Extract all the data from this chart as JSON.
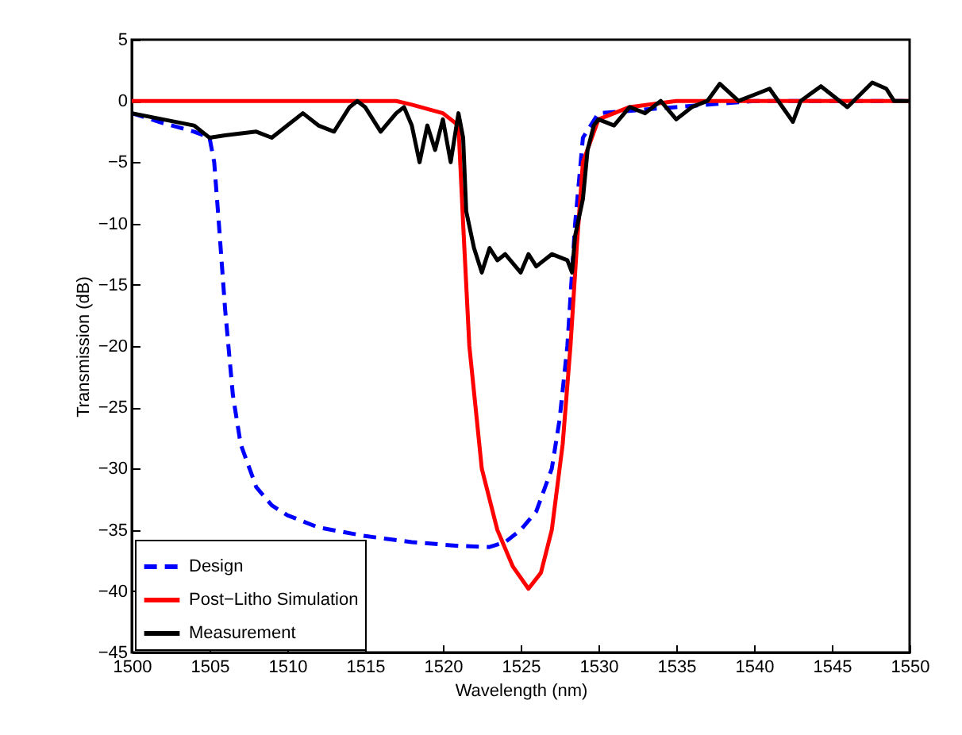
{
  "chart_data": {
    "type": "line",
    "xlabel": "Wavelength (nm)",
    "ylabel": "Transmission (dB)",
    "xlim": [
      1500,
      1550
    ],
    "xticks": [
      1500,
      1505,
      1510,
      1515,
      1520,
      1525,
      1530,
      1535,
      1540,
      1545,
      1550
    ],
    "ylim": [
      -45,
      5
    ],
    "yticks": [
      -45,
      -40,
      -35,
      -30,
      -25,
      -20,
      -15,
      -10,
      -5,
      0,
      5
    ],
    "grid": false,
    "legend": "bottom left",
    "series": [
      {
        "name": "Design",
        "color": "#0000ff",
        "line_style": "dashed",
        "x": [
          1500,
          1502,
          1504,
          1505,
          1505.3,
          1505.6,
          1506,
          1506.5,
          1507,
          1508,
          1509,
          1510,
          1512,
          1515,
          1518,
          1521,
          1523,
          1524,
          1525,
          1526,
          1527,
          1527.5,
          1528,
          1528.5,
          1529,
          1530,
          1535,
          1540,
          1545,
          1550
        ],
        "values": [
          -1,
          -1.8,
          -2.5,
          -3,
          -5,
          -10,
          -17,
          -24,
          -28,
          -31.5,
          -33,
          -33.8,
          -34.8,
          -35.5,
          -36,
          -36.3,
          -36.4,
          -36,
          -35,
          -33.5,
          -30,
          -26,
          -20,
          -10,
          -3,
          -1,
          -0.5,
          0,
          0,
          0
        ]
      },
      {
        "name": "Post−Litho Simulation",
        "color": "#ff0000",
        "line_style": "solid",
        "x": [
          1500,
          1517,
          1518,
          1520,
          1521,
          1521.3,
          1521.7,
          1522.5,
          1523.5,
          1524.5,
          1525.5,
          1526.3,
          1527,
          1527.7,
          1528.2,
          1528.6,
          1529,
          1530,
          1532,
          1535,
          1550
        ],
        "values": [
          0,
          0,
          -0.3,
          -1,
          -2,
          -10,
          -20,
          -30,
          -35,
          -38,
          -39.8,
          -38.5,
          -35,
          -28,
          -20,
          -12,
          -5,
          -1.5,
          -0.5,
          0,
          0
        ]
      },
      {
        "name": "Measurement",
        "color": "#000000",
        "line_style": "solid",
        "x": [
          1500,
          1502,
          1504,
          1505,
          1506,
          1508,
          1509,
          1510,
          1511,
          1512,
          1513,
          1514,
          1514.5,
          1515,
          1516,
          1517,
          1517.5,
          1518,
          1518.5,
          1519,
          1519.5,
          1520,
          1520.5,
          1521,
          1521.3,
          1521.5,
          1522,
          1522.5,
          1523,
          1523.5,
          1524,
          1525,
          1525.5,
          1526,
          1527,
          1528,
          1528.3,
          1528.5,
          1529,
          1529.3,
          1529.7,
          1530,
          1531,
          1532,
          1533,
          1534,
          1535,
          1536,
          1537,
          1537.8,
          1539,
          1540,
          1541,
          1542.5,
          1543,
          1544.3,
          1545,
          1546,
          1547.6,
          1548.5,
          1549,
          1550
        ],
        "values": [
          -1,
          -1.5,
          -2,
          -3,
          -2.8,
          -2.5,
          -3,
          -2,
          -1,
          -2,
          -2.5,
          -0.5,
          0,
          -0.5,
          -2.5,
          -1,
          -0.5,
          -2,
          -5,
          -2,
          -4,
          -1.5,
          -5,
          -1,
          -3,
          -9,
          -12,
          -14,
          -12,
          -13,
          -12.5,
          -14,
          -12.5,
          -13.5,
          -12.5,
          -13,
          -14,
          -11,
          -8,
          -4,
          -2,
          -1.5,
          -2,
          -0.5,
          -1,
          0,
          -1.5,
          -0.5,
          0,
          1.4,
          0,
          0.5,
          1,
          -1.7,
          0,
          1.2,
          0.5,
          -0.5,
          1.5,
          1,
          0,
          0
        ]
      }
    ]
  }
}
